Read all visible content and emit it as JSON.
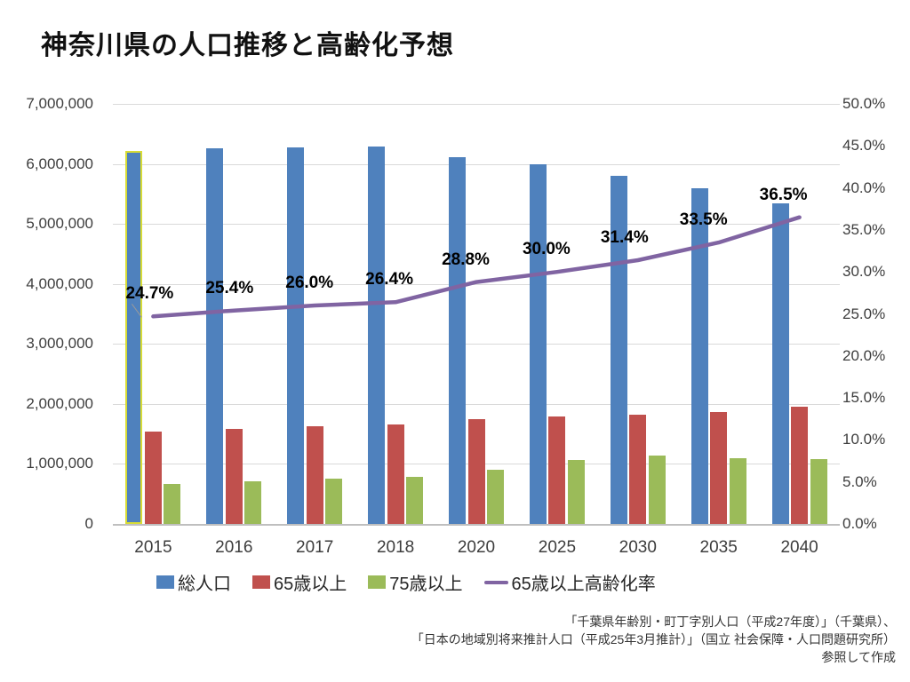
{
  "title": "神奈川県の人口推移と高齢化予想",
  "chart_data": {
    "type": "bar",
    "subtype": "bar-line-combo-dual-axis",
    "categories": [
      "2015",
      "2016",
      "2017",
      "2018",
      "2020",
      "2025",
      "2030",
      "2035",
      "2040"
    ],
    "series": [
      {
        "key": "total",
        "name": "総人口",
        "type": "bar",
        "axis": "left",
        "color": "#4F81BD",
        "values": [
          6220000,
          6260000,
          6280000,
          6290000,
          6120000,
          5990000,
          5800000,
          5590000,
          5340000
        ]
      },
      {
        "key": "age65",
        "name": "65歳以上",
        "type": "bar",
        "axis": "left",
        "color": "#C0504D",
        "values": [
          1540000,
          1590000,
          1630000,
          1660000,
          1750000,
          1790000,
          1820000,
          1870000,
          1950000
        ]
      },
      {
        "key": "age75",
        "name": "75歳以上",
        "type": "bar",
        "axis": "left",
        "color": "#9BBB59",
        "values": [
          670000,
          710000,
          750000,
          780000,
          900000,
          1070000,
          1140000,
          1100000,
          1080000
        ]
      },
      {
        "key": "rate",
        "name": "65歳以上高齢化率",
        "type": "line",
        "axis": "right",
        "color": "#8064A2",
        "values": [
          24.7,
          25.4,
          26.0,
          26.4,
          28.8,
          30.0,
          31.4,
          33.5,
          36.5
        ],
        "labels": [
          "24.7%",
          "25.4%",
          "26.0%",
          "26.4%",
          "28.8%",
          "30.0%",
          "31.4%",
          "33.5%",
          "36.5%"
        ]
      }
    ],
    "left_axis": {
      "min": 0,
      "max": 7000000,
      "step": 1000000,
      "tick_labels": [
        "7,000,000",
        "6,000,000",
        "5,000,000",
        "4,000,000",
        "3,000,000",
        "2,000,000",
        "1,000,000",
        "0"
      ]
    },
    "right_axis": {
      "min": 0,
      "max": 50,
      "step": 5,
      "tick_labels": [
        "50.0%",
        "45.0%",
        "40.0%",
        "35.0%",
        "30.0%",
        "25.0%",
        "20.0%",
        "15.0%",
        "10.0%",
        "5.0%",
        "0.0%"
      ]
    },
    "grid": true,
    "legend_position": "bottom",
    "highlight": {
      "series": "total",
      "category": "2015",
      "outline_color": "#D8DC35"
    }
  },
  "footer": {
    "lines": [
      "「千葉県年齢別・町丁字別人口（平成27年度）」（千葉県）、",
      "「日本の地域別将来推計人口（平成25年3月推計）」（国立 社会保障・人口問題研究所）",
      "参照して作成"
    ]
  }
}
